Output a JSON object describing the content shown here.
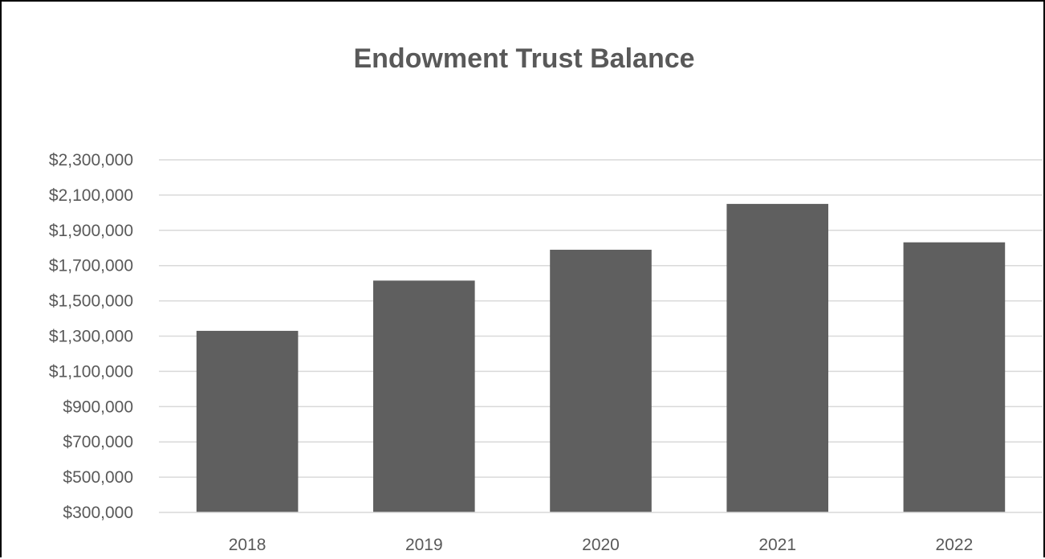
{
  "chart_data": {
    "type": "bar",
    "title": "Endowment Trust Balance",
    "xlabel": "",
    "ylabel": "",
    "categories": [
      "2018",
      "2019",
      "2020",
      "2021",
      "2022"
    ],
    "values": [
      1330000,
      1615000,
      1790000,
      2050000,
      1832000
    ],
    "ylim": [
      300000,
      2300000
    ],
    "y_ticks": [
      300000,
      500000,
      700000,
      900000,
      1100000,
      1300000,
      1500000,
      1700000,
      1900000,
      2100000,
      2300000
    ],
    "y_tick_labels": [
      "$300,000",
      "$500,000",
      "$700,000",
      "$900,000",
      "$1,100,000",
      "$1,300,000",
      "$1,500,000",
      "$1,700,000",
      "$1,900,000",
      "$2,100,000",
      "$2,300,000"
    ],
    "grid": true,
    "legend": "none",
    "colors": {
      "bar": "#5f5f5f",
      "grid": "#d9d9d9",
      "text": "#595959"
    }
  }
}
